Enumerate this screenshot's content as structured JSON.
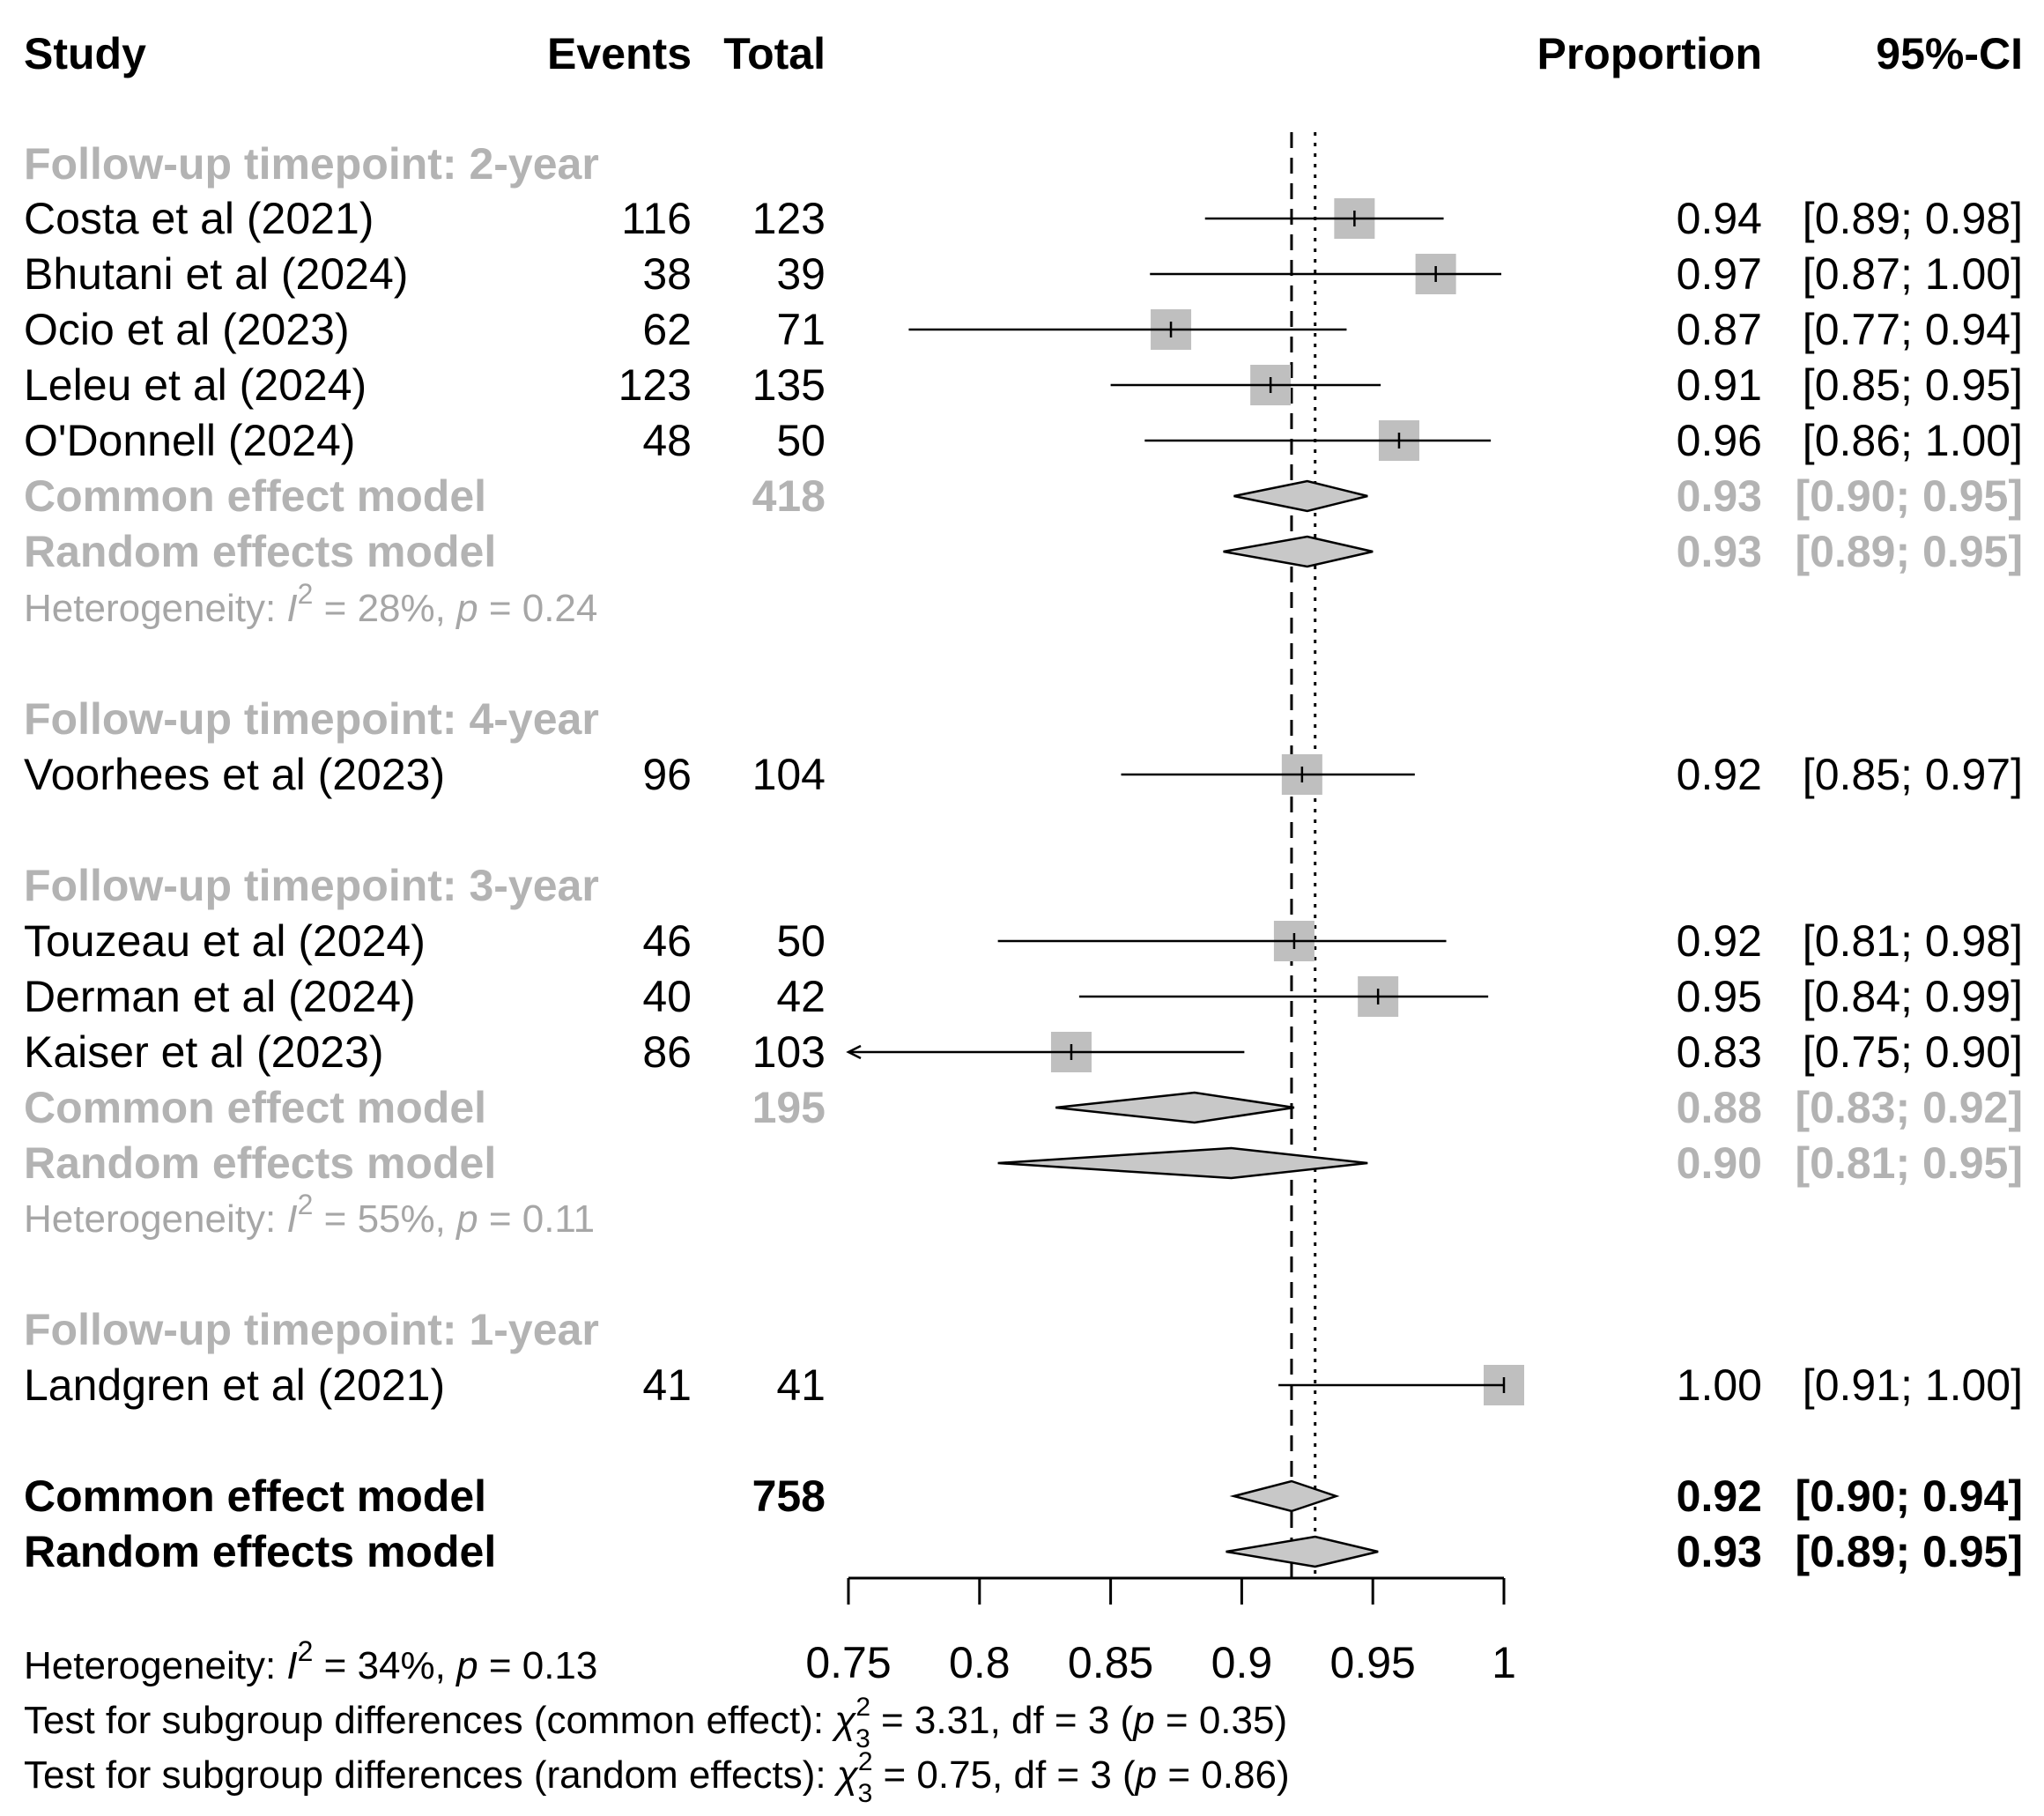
{
  "chart_data": {
    "type": "forest",
    "title": "",
    "xlabel": "",
    "xlim": [
      0.75,
      1.0
    ],
    "xticks": [
      0.75,
      0.8,
      0.85,
      0.9,
      0.95,
      1.0
    ],
    "xtick_labels": [
      "0.75",
      "0.8",
      "0.85",
      "0.9",
      "0.95",
      "1"
    ],
    "reference_lines": {
      "common": 0.919,
      "random": 0.928
    },
    "headers": {
      "study": "Study",
      "events": "Events",
      "total": "Total",
      "proportion": "Proportion",
      "ci": "95%-CI"
    },
    "groups": [
      {
        "label": "Follow-up timepoint: 2-year",
        "studies": [
          {
            "study": "Costa et al (2021)",
            "events": "116",
            "total": "123",
            "prop_text": "0.94",
            "ci_text": "[0.89; 0.98]",
            "est": 0.943,
            "lo": 0.886,
            "hi": 0.977
          },
          {
            "study": "Bhutani et al (2024)",
            "events": "38",
            "total": "39",
            "prop_text": "0.97",
            "ci_text": "[0.87; 1.00]",
            "est": 0.974,
            "lo": 0.865,
            "hi": 0.999
          },
          {
            "study": "Ocio et al (2023)",
            "events": "62",
            "total": "71",
            "prop_text": "0.87",
            "ci_text": "[0.77; 0.94]",
            "est": 0.873,
            "lo": 0.773,
            "hi": 0.94
          },
          {
            "study": "Leleu et al (2024)",
            "events": "123",
            "total": "135",
            "prop_text": "0.91",
            "ci_text": "[0.85; 0.95]",
            "est": 0.911,
            "lo": 0.85,
            "hi": 0.953
          },
          {
            "study": "O'Donnell (2024)",
            "events": "48",
            "total": "50",
            "prop_text": "0.96",
            "ci_text": "[0.86; 1.00]",
            "est": 0.96,
            "lo": 0.863,
            "hi": 0.995
          }
        ],
        "common": {
          "label": "Common effect model",
          "total": "418",
          "prop_text": "0.93",
          "ci_text": "[0.90; 0.95]",
          "est": 0.925,
          "lo": 0.897,
          "hi": 0.948
        },
        "random": {
          "label": "Random effects model",
          "prop_text": "0.93",
          "ci_text": "[0.89; 0.95]",
          "est": 0.925,
          "lo": 0.893,
          "hi": 0.95
        },
        "heterogeneity": {
          "prefix": "Heterogeneity: ",
          "i2": "I",
          "sup": "2",
          "rest": " = 28%, ",
          "p": "p",
          "pval": " = 0.24"
        }
      },
      {
        "label": "Follow-up timepoint: 4-year",
        "studies": [
          {
            "study": "Voorhees et al (2023)",
            "events": "96",
            "total": "104",
            "prop_text": "0.92",
            "ci_text": "[0.85; 0.97]",
            "est": 0.923,
            "lo": 0.854,
            "hi": 0.966
          }
        ]
      },
      {
        "label": "Follow-up timepoint: 3-year",
        "studies": [
          {
            "study": "Touzeau et al (2024)",
            "events": "46",
            "total": "50",
            "prop_text": "0.92",
            "ci_text": "[0.81; 0.98]",
            "est": 0.92,
            "lo": 0.807,
            "hi": 0.978
          },
          {
            "study": "Derman et al (2024)",
            "events": "40",
            "total": "42",
            "prop_text": "0.95",
            "ci_text": "[0.84; 0.99]",
            "est": 0.952,
            "lo": 0.838,
            "hi": 0.994
          },
          {
            "study": "Kaiser et al (2023)",
            "events": "86",
            "total": "103",
            "prop_text": "0.83",
            "ci_text": "[0.75; 0.90]",
            "est": 0.835,
            "lo": 0.748,
            "hi": 0.901
          }
        ],
        "common": {
          "label": "Common effect model",
          "total": "195",
          "prop_text": "0.88",
          "ci_text": "[0.83; 0.92]",
          "est": 0.882,
          "lo": 0.829,
          "hi": 0.92
        },
        "random": {
          "label": "Random effects model",
          "prop_text": "0.90",
          "ci_text": "[0.81; 0.95]",
          "est": 0.896,
          "lo": 0.807,
          "hi": 0.948
        },
        "heterogeneity": {
          "prefix": "Heterogeneity: ",
          "i2": "I",
          "sup": "2",
          "rest": " = 55%, ",
          "p": "p",
          "pval": " = 0.11"
        }
      },
      {
        "label": "Follow-up timepoint: 1-year",
        "studies": [
          {
            "study": "Landgren et al (2021)",
            "events": "41",
            "total": "41",
            "prop_text": "1.00",
            "ci_text": "[0.91; 1.00]",
            "est": 1.0,
            "lo": 0.914,
            "hi": 1.0
          }
        ]
      }
    ],
    "overall": {
      "common": {
        "label": "Common effect model",
        "total": "758",
        "prop_text": "0.92",
        "ci_text": "[0.90; 0.94]",
        "est": 0.919,
        "lo": 0.897,
        "hi": 0.936
      },
      "random": {
        "label": "Random effects model",
        "prop_text": "0.93",
        "ci_text": "[0.89; 0.95]",
        "est": 0.928,
        "lo": 0.894,
        "hi": 0.952
      }
    },
    "footer": {
      "heterogeneity": {
        "prefix": "Heterogeneity: ",
        "i2": "I",
        "sup": "2",
        "rest": " = 34%, ",
        "p": "p",
        "pval": " = 0.13"
      },
      "subgroup_common": {
        "prefix": "Test for subgroup differences (common effect): ",
        "chi": "χ",
        "sup": "2",
        "sub": "3",
        "rest1": " = 3.31, df = 3 (",
        "p": "p",
        "rest2": " = 0.35)"
      },
      "subgroup_random": {
        "prefix": "Test for subgroup differences (random effects): ",
        "chi": "χ",
        "sup": "2",
        "sub": "3",
        "rest1": " = 0.75, df = 3 (",
        "p": "p",
        "rest2": " = 0.86)"
      }
    }
  },
  "colors": {
    "text": "#000000",
    "subgroup_text": "#b3b3b3",
    "heterogeneity_text": "#a6a6a6",
    "square_fill": "#bfbfbf",
    "diamond_fill": "#c8c8c8",
    "line": "#000000"
  }
}
